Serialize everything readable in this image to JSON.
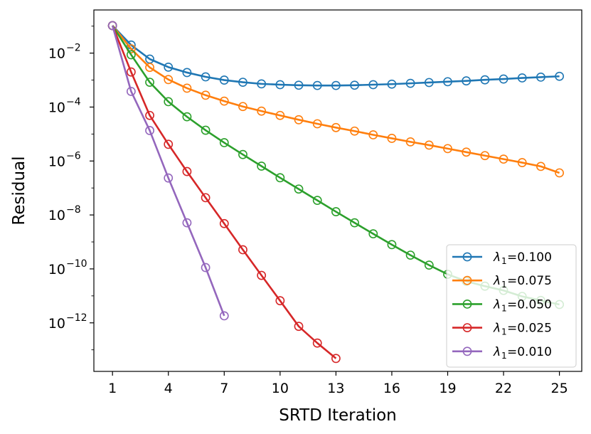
{
  "chart_data": {
    "type": "line",
    "xlabel": "SRTD Iteration",
    "ylabel": "Residual",
    "yscale": "log",
    "xlim": [
      0,
      26.2
    ],
    "ylim_log10": [
      -13.8,
      -0.4
    ],
    "x_ticks": [
      1,
      4,
      7,
      10,
      13,
      16,
      19,
      22,
      25
    ],
    "y_ticks": [
      {
        "exp": -2,
        "base": "10",
        "sup": "−2"
      },
      {
        "exp": -4,
        "base": "10",
        "sup": "−4"
      },
      {
        "exp": -6,
        "base": "10",
        "sup": "−6"
      },
      {
        "exp": -8,
        "base": "10",
        "sup": "−8"
      },
      {
        "exp": -10,
        "base": "10",
        "sup": "−10"
      },
      {
        "exp": -12,
        "base": "10",
        "sup": "−12"
      }
    ],
    "legend_location": "lower-right",
    "series": [
      {
        "name": "λ1=0.100",
        "legend_symbol": "λ",
        "legend_sub": "1",
        "legend_value": "=0.100",
        "color": "#1f77b4",
        "x": [
          1,
          2,
          3,
          4,
          5,
          6,
          7,
          8,
          9,
          10,
          11,
          12,
          13,
          14,
          15,
          16,
          17,
          18,
          19,
          20,
          21,
          22,
          23,
          24,
          25
        ],
        "log10_y": [
          -0.98,
          -1.7,
          -2.22,
          -2.52,
          -2.72,
          -2.88,
          -3.0,
          -3.08,
          -3.14,
          -3.17,
          -3.19,
          -3.2,
          -3.2,
          -3.19,
          -3.17,
          -3.15,
          -3.12,
          -3.09,
          -3.06,
          -3.03,
          -2.99,
          -2.96,
          -2.92,
          -2.89,
          -2.86
        ]
      },
      {
        "name": "λ1=0.075",
        "legend_symbol": "λ",
        "legend_sub": "1",
        "legend_value": "=0.075",
        "color": "#ff7f0e",
        "x": [
          1,
          2,
          3,
          4,
          5,
          6,
          7,
          8,
          9,
          10,
          11,
          12,
          13,
          14,
          15,
          16,
          17,
          18,
          19,
          20,
          21,
          22,
          23,
          24,
          25
        ],
        "log10_y": [
          -0.98,
          -1.84,
          -2.53,
          -2.98,
          -3.3,
          -3.56,
          -3.78,
          -3.98,
          -4.15,
          -4.31,
          -4.47,
          -4.62,
          -4.76,
          -4.89,
          -5.03,
          -5.16,
          -5.29,
          -5.41,
          -5.54,
          -5.67,
          -5.8,
          -5.93,
          -6.06,
          -6.2,
          -6.44
        ]
      },
      {
        "name": "λ1=0.050",
        "legend_symbol": "λ",
        "legend_sub": "1",
        "legend_value": "=0.050",
        "color": "#2ca02c",
        "x": [
          1,
          2,
          3,
          4,
          5,
          6,
          7,
          8,
          9,
          10,
          11,
          12,
          13,
          14,
          15,
          16,
          17,
          18,
          19,
          20,
          21,
          22,
          23,
          24,
          25
        ],
        "log10_y": [
          -0.98,
          -2.06,
          -3.08,
          -3.8,
          -4.36,
          -4.86,
          -5.32,
          -5.76,
          -6.19,
          -6.62,
          -7.04,
          -7.46,
          -7.88,
          -8.29,
          -8.7,
          -9.1,
          -9.49,
          -9.86,
          -10.2,
          -10.46,
          -10.64,
          -10.8,
          -11.02,
          -11.17,
          -11.32
        ]
      },
      {
        "name": "λ1=0.025",
        "legend_symbol": "λ",
        "legend_sub": "1",
        "legend_value": "=0.025",
        "color": "#d62728",
        "x": [
          1,
          2,
          3,
          4,
          5,
          6,
          7,
          8,
          9,
          10,
          11,
          12,
          13
        ],
        "log10_y": [
          -0.98,
          -2.7,
          -4.31,
          -5.38,
          -6.39,
          -7.36,
          -8.32,
          -9.29,
          -10.24,
          -11.18,
          -12.13,
          -12.75,
          -13.32
        ]
      },
      {
        "name": "λ1=0.010",
        "legend_symbol": "λ",
        "legend_sub": "1",
        "legend_value": "=0.010",
        "color": "#9467bd",
        "x": [
          1,
          2,
          3,
          4,
          5,
          6,
          7
        ],
        "log10_y": [
          -0.98,
          -3.42,
          -4.87,
          -6.63,
          -8.29,
          -9.95,
          -11.74
        ]
      }
    ]
  }
}
